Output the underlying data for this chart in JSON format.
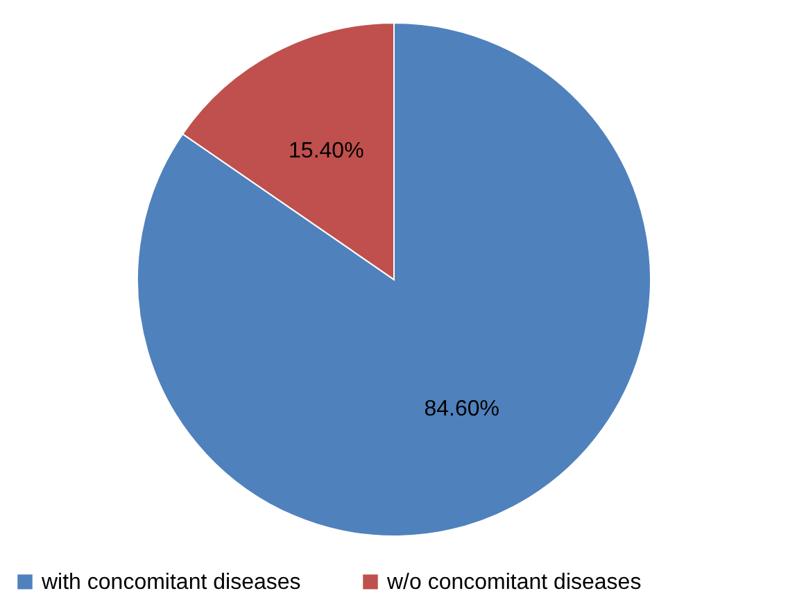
{
  "chart_data": {
    "type": "pie",
    "categories": [
      "with concomitant diseases",
      "w/o concomitant diseases"
    ],
    "values": [
      84.6,
      15.4
    ],
    "colors": [
      "#4f81bd",
      "#c0504d"
    ],
    "value_labels": [
      "84.60%",
      "15.40%"
    ],
    "legend": "bottom"
  }
}
